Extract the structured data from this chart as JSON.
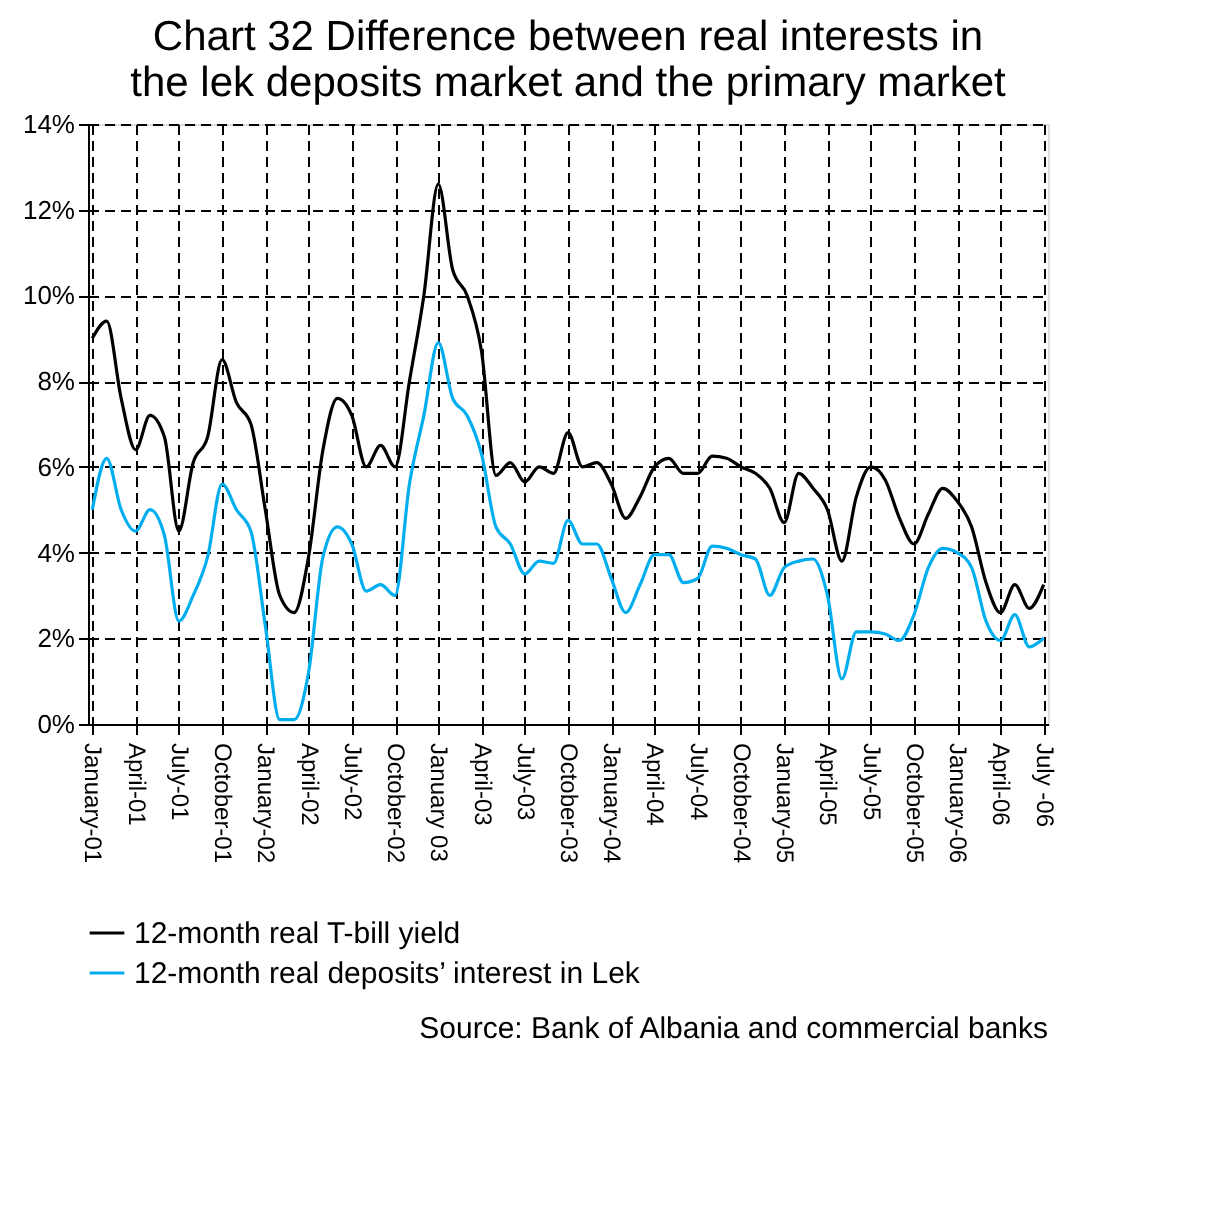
{
  "chart_data": {
    "type": "line",
    "title": "Chart 32 Difference between real interests in the lek deposits market and the primary market",
    "categories": [
      "January-01",
      null,
      null,
      "April-01",
      null,
      null,
      "July-01",
      null,
      null,
      "October-01",
      null,
      null,
      "January-02",
      null,
      null,
      "April-02",
      null,
      null,
      "July-02",
      null,
      null,
      "October-02",
      null,
      null,
      "January 03",
      null,
      null,
      "April-03",
      null,
      null,
      "July-03",
      null,
      null,
      "October-03",
      null,
      null,
      "January-04",
      null,
      null,
      "April-04",
      null,
      null,
      "July-04",
      null,
      null,
      "October-04",
      null,
      null,
      "January-05",
      null,
      null,
      "April-05",
      null,
      null,
      "July-05",
      null,
      null,
      "October-05",
      null,
      null,
      "January-06",
      null,
      null,
      "April-06",
      null,
      null,
      "July -06"
    ],
    "series": [
      {
        "name": "12-month real T-bill yield",
        "color": "#000000",
        "values": [
          9.0,
          9.4,
          7.6,
          6.4,
          7.2,
          6.7,
          4.5,
          6.1,
          6.7,
          8.5,
          7.5,
          7.0,
          5.0,
          3.0,
          2.6,
          3.9,
          6.4,
          7.6,
          7.2,
          6.0,
          6.5,
          6.0,
          8.0,
          10.0,
          12.6,
          10.6,
          10.0,
          8.7,
          5.8,
          6.1,
          5.65,
          6.0,
          5.85,
          6.8,
          6.0,
          6.1,
          5.6,
          4.8,
          5.3,
          6.0,
          6.2,
          5.85,
          5.85,
          6.25,
          6.2,
          6.0,
          5.85,
          5.5,
          4.7,
          5.85,
          5.5,
          5.0,
          3.8,
          5.3,
          6.0,
          5.7,
          4.8,
          4.2,
          4.9,
          5.5,
          5.2,
          4.6,
          3.3,
          2.6,
          3.25,
          2.7,
          3.25
        ]
      },
      {
        "name": "12-month real deposits’ interest in Lek",
        "color": "#00aeef",
        "values": [
          5.0,
          6.2,
          5.0,
          4.5,
          5.0,
          4.4,
          2.4,
          3.0,
          3.9,
          5.6,
          5.0,
          4.5,
          2.3,
          0.1,
          0.1,
          1.2,
          3.9,
          4.6,
          4.2,
          3.1,
          3.25,
          3.0,
          5.6,
          7.2,
          8.9,
          7.6,
          7.2,
          6.3,
          4.6,
          4.2,
          3.5,
          3.8,
          3.75,
          4.75,
          4.2,
          4.2,
          3.4,
          2.6,
          3.25,
          3.95,
          3.95,
          3.3,
          3.4,
          4.15,
          4.1,
          3.95,
          3.85,
          3.0,
          3.65,
          3.8,
          3.85,
          3.0,
          1.05,
          2.15,
          2.15,
          2.1,
          1.95,
          2.55,
          3.65,
          4.1,
          4.0,
          3.65,
          2.4,
          1.95,
          2.55,
          1.8,
          2.0
        ]
      }
    ],
    "ylim": [
      0,
      14
    ],
    "yticks": [
      {
        "value": 0,
        "label": "0%"
      },
      {
        "value": 2,
        "label": "2%"
      },
      {
        "value": 4,
        "label": "4%"
      },
      {
        "value": 6,
        "label": "6%"
      },
      {
        "value": 8,
        "label": "8%"
      },
      {
        "value": 10,
        "label": "10%"
      },
      {
        "value": 12,
        "label": "12%"
      },
      {
        "value": 14,
        "label": "14%"
      }
    ],
    "grid": true,
    "legend": "bottom left",
    "line_style": "solid",
    "marker": "none",
    "annotations": [
      "Source: Bank of Albania and commercial banks"
    ]
  }
}
